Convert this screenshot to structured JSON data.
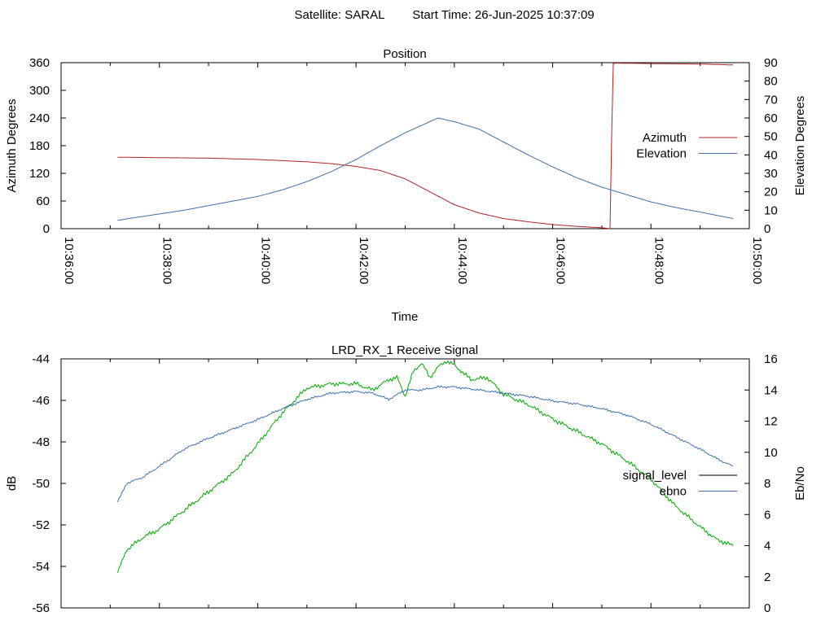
{
  "header": {
    "satellite": "Satellite: SARAL",
    "start_time": "Start Time: 26-Jun-2025 10:37:09"
  },
  "colors": {
    "azimuth": "#b22222",
    "elevation": "#3d6fb3",
    "signal_level": "#00aa00",
    "ebno": "#3d6fb3",
    "legend_signal_level": "#000000"
  },
  "chart_data": [
    {
      "type": "line",
      "title": "Position",
      "xlabel": "Time",
      "ylabel": "Azimuth Degrees",
      "y2label": "Elevation Degrees",
      "x_ticks": [
        "10:36:00",
        "10:38:00",
        "10:40:00",
        "10:42:00",
        "10:44:00",
        "10:46:00",
        "10:48:00",
        "10:50:00"
      ],
      "xlim": [
        "10:36:00",
        "10:50:00"
      ],
      "ylim": [
        0,
        360
      ],
      "y_ticks": [
        0,
        60,
        120,
        180,
        240,
        300,
        360
      ],
      "y2lim": [
        0,
        90
      ],
      "y2_ticks": [
        0,
        10,
        20,
        30,
        40,
        50,
        60,
        70,
        80,
        90
      ],
      "legend_position": "right",
      "series": [
        {
          "name": "Azimuth",
          "axis": "y",
          "x": [
            "10:37:09",
            "10:38:00",
            "10:39:00",
            "10:40:00",
            "10:41:00",
            "10:41:30",
            "10:42:00",
            "10:42:30",
            "10:43:00",
            "10:43:30",
            "10:44:00",
            "10:44:30",
            "10:45:00",
            "10:45:30",
            "10:46:00",
            "10:46:30",
            "10:47:00",
            "10:47:10",
            "10:47:12",
            "10:47:14",
            "10:47:16",
            "10:47:20",
            "10:48:00",
            "10:49:00",
            "10:49:40"
          ],
          "values": [
            155,
            154,
            153,
            150,
            145,
            141,
            135,
            126,
            108,
            80,
            52,
            34,
            22,
            15,
            9,
            5,
            2,
            0,
            200,
            358,
            359,
            359,
            358,
            357,
            355
          ]
        },
        {
          "name": "Elevation",
          "axis": "y2",
          "x": [
            "10:37:09",
            "10:37:30",
            "10:38:00",
            "10:38:30",
            "10:39:00",
            "10:39:30",
            "10:40:00",
            "10:40:30",
            "10:41:00",
            "10:41:30",
            "10:42:00",
            "10:42:30",
            "10:43:00",
            "10:43:20",
            "10:43:30",
            "10:43:40",
            "10:44:00",
            "10:44:30",
            "10:45:00",
            "10:45:30",
            "10:46:00",
            "10:46:30",
            "10:47:00",
            "10:47:30",
            "10:48:00",
            "10:48:30",
            "10:49:00",
            "10:49:40"
          ],
          "values": [
            4.5,
            6,
            8,
            10,
            12.5,
            15,
            17.5,
            21,
            25.5,
            31,
            37.5,
            45,
            52,
            56,
            58,
            60,
            58,
            54,
            47,
            40,
            33.5,
            27.5,
            22.5,
            18.5,
            14.5,
            11.5,
            9,
            5.5
          ]
        }
      ]
    },
    {
      "type": "line",
      "title": "LRD_RX_1 Receive Signal",
      "ylabel": "dB",
      "y2label": "Eb/No",
      "xlim": [
        "10:36:00",
        "10:50:00"
      ],
      "ylim": [
        -56,
        -44
      ],
      "y_ticks": [
        -56,
        -54,
        -52,
        -50,
        -48,
        -46,
        -44
      ],
      "y2lim": [
        0,
        16
      ],
      "y2_ticks": [
        0,
        2,
        4,
        6,
        8,
        10,
        12,
        14,
        16
      ],
      "legend_position": "right",
      "series": [
        {
          "name": "signal_level",
          "axis": "y",
          "x": [
            "10:37:09",
            "10:37:20",
            "10:37:30",
            "10:37:40",
            "10:38:00",
            "10:38:30",
            "10:39:00",
            "10:39:30",
            "10:40:00",
            "10:40:30",
            "10:41:00",
            "10:41:30",
            "10:42:00",
            "10:42:20",
            "10:42:40",
            "10:42:50",
            "10:43:00",
            "10:43:10",
            "10:43:20",
            "10:43:30",
            "10:43:40",
            "10:43:50",
            "10:44:00",
            "10:44:20",
            "10:44:40",
            "10:45:00",
            "10:45:30",
            "10:46:00",
            "10:46:30",
            "10:47:00",
            "10:47:30",
            "10:48:00",
            "10:48:30",
            "10:49:00",
            "10:49:20",
            "10:49:40"
          ],
          "values": [
            -54.3,
            -53.2,
            -52.9,
            -52.6,
            -52.2,
            -51.3,
            -50.4,
            -49.5,
            -48.1,
            -46.6,
            -45.4,
            -45.2,
            -45.2,
            -45.5,
            -45.0,
            -44.9,
            -45.8,
            -44.6,
            -44.2,
            -44.9,
            -44.4,
            -44.1,
            -44.3,
            -45.0,
            -44.9,
            -45.7,
            -46.2,
            -46.9,
            -47.5,
            -48.1,
            -48.9,
            -49.8,
            -51.1,
            -52.1,
            -52.7,
            -53.0
          ]
        },
        {
          "name": "ebno",
          "axis": "y2",
          "x": [
            "10:37:09",
            "10:37:20",
            "10:37:40",
            "10:38:00",
            "10:38:30",
            "10:39:00",
            "10:39:30",
            "10:40:00",
            "10:40:30",
            "10:41:00",
            "10:41:30",
            "10:42:00",
            "10:42:20",
            "10:42:40",
            "10:43:00",
            "10:43:20",
            "10:43:40",
            "10:44:00",
            "10:44:30",
            "10:45:00",
            "10:45:30",
            "10:46:00",
            "10:46:30",
            "10:47:00",
            "10:47:30",
            "10:48:00",
            "10:48:30",
            "10:49:00",
            "10:49:20",
            "10:49:40"
          ],
          "values": [
            6.8,
            8.0,
            8.4,
            9.1,
            10.2,
            10.9,
            11.5,
            12.1,
            12.8,
            13.4,
            13.8,
            13.9,
            13.8,
            13.4,
            14.0,
            14.0,
            14.2,
            14.2,
            14.0,
            13.8,
            13.6,
            13.3,
            13.1,
            12.8,
            12.4,
            11.8,
            11.0,
            10.2,
            9.6,
            9.1
          ]
        }
      ]
    }
  ]
}
